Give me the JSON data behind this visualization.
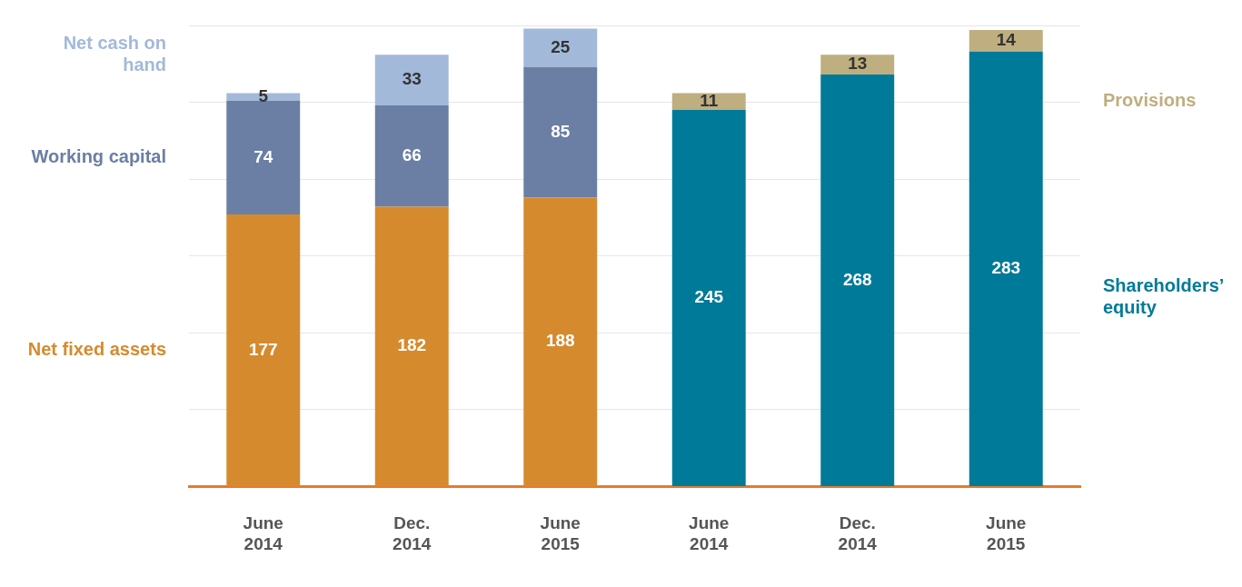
{
  "chart_data": {
    "type": "bar",
    "categories": [
      "June 2014",
      "Dec. 2014",
      "June 2015",
      "June 2014",
      "Dec. 2014",
      "June 2015"
    ],
    "series": [
      {
        "name": "Net fixed assets",
        "color": "#d68a2e",
        "values": [
          177,
          182,
          188,
          null,
          null,
          null
        ]
      },
      {
        "name": "Working capital",
        "color": "#6a7fa3",
        "values": [
          74,
          66,
          85,
          null,
          null,
          null
        ]
      },
      {
        "name": "Net cash on hand",
        "color": "#a3b9da",
        "values": [
          5,
          33,
          25,
          null,
          null,
          null
        ]
      },
      {
        "name": "Shareholders’ equity",
        "color": "#007a99",
        "values": [
          null,
          null,
          null,
          245,
          268,
          283
        ]
      },
      {
        "name": "Provisions",
        "color": "#bfae7f",
        "values": [
          null,
          null,
          null,
          11,
          13,
          14
        ]
      }
    ],
    "stacked": true,
    "data_labels": true,
    "ylim": [
      0,
      300
    ],
    "yticks": [
      {
        "value": 0,
        "label": null
      },
      {
        "value": 50,
        "label": null
      },
      {
        "value": 100,
        "label": null
      },
      {
        "value": 150,
        "label": null
      },
      {
        "value": 200,
        "label": null
      },
      {
        "value": 250,
        "label": null
      },
      {
        "value": 300,
        "label": null
      }
    ],
    "grid": "y",
    "legend": false,
    "tick_labels": "x"
  }
}
